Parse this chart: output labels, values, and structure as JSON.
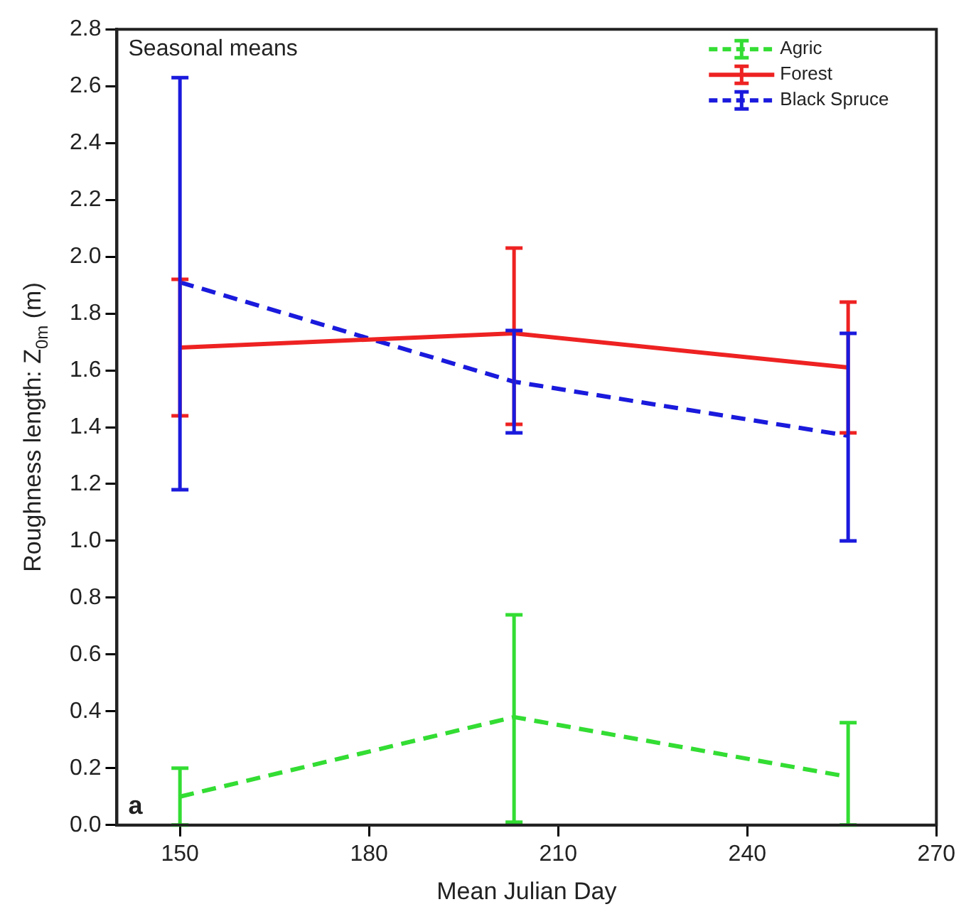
{
  "chart_data": {
    "type": "line",
    "xlabel": "Mean Julian Day",
    "ylabel": "Roughness length: Z$_{0m}$ (m)",
    "annotations": [
      "Seasonal means",
      "a"
    ],
    "x": [
      150,
      203,
      256
    ],
    "series": [
      {
        "name": "Agric",
        "color": "#33dd33",
        "line_style": "dashed",
        "values": [
          0.1,
          0.38,
          0.17
        ],
        "errors": [
          [
            0,
            0.2
          ],
          [
            0.01,
            0.74
          ],
          [
            0,
            0.36
          ]
        ]
      },
      {
        "name": "Forest",
        "color": "#ee2222",
        "line_style": "solid",
        "values": [
          1.68,
          1.73,
          1.61
        ],
        "errors": [
          [
            1.44,
            1.92
          ],
          [
            1.41,
            2.03
          ],
          [
            1.38,
            1.84
          ]
        ]
      },
      {
        "name": "Black Spruce",
        "color": "#1a1add",
        "line_style": "dashed",
        "values": [
          1.91,
          1.56,
          1.37
        ],
        "errors": [
          [
            1.18,
            2.63
          ],
          [
            1.38,
            1.74
          ],
          [
            1.0,
            1.73
          ]
        ]
      }
    ],
    "xlim": [
      140,
      270
    ],
    "xticks": [
      150,
      180,
      210,
      240,
      270
    ],
    "ylim": [
      0,
      2.8
    ],
    "yticks": [
      {
        "value": 0,
        "label": "0.0"
      },
      {
        "value": 0.2,
        "label": "0.2"
      },
      {
        "value": 0.4,
        "label": "0.4"
      },
      {
        "value": 0.6,
        "label": "0.6"
      },
      {
        "value": 0.8,
        "label": "0.8"
      },
      {
        "value": 1.0,
        "label": "1.0"
      },
      {
        "value": 1.2,
        "label": "1.2"
      },
      {
        "value": 1.4,
        "label": "1.4"
      },
      {
        "value": 1.6,
        "label": "1.6"
      },
      {
        "value": 1.8,
        "label": "1.8"
      },
      {
        "value": 2.0,
        "label": "2.0"
      },
      {
        "value": 2.2,
        "label": "2.2"
      },
      {
        "value": 2.4,
        "label": "2.4"
      },
      {
        "value": 2.6,
        "label": "2.6"
      },
      {
        "value": 2.8,
        "label": "2.8"
      }
    ],
    "grid": false,
    "legend": "top right",
    "marker": "none"
  }
}
